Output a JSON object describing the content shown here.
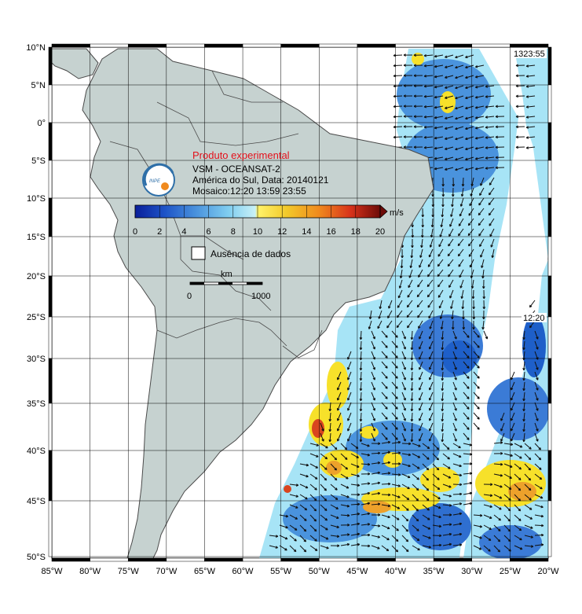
{
  "map": {
    "lat_labels": [
      "10°N",
      "5°N",
      "0°",
      "5°S",
      "10°S",
      "15°S",
      "20°S",
      "25°S",
      "30°S",
      "35°S",
      "40°S",
      "45°S",
      "50°S"
    ],
    "lon_labels": [
      "85°W",
      "80°W",
      "75°W",
      "70°W",
      "65°W",
      "60°W",
      "55°W",
      "50°W",
      "45°W",
      "40°W",
      "35°W",
      "30°W",
      "25°W",
      "20°W"
    ],
    "extent": {
      "lon_min": -85,
      "lon_max": -20,
      "lat_min": -50,
      "lat_max": 10
    }
  },
  "info": {
    "title": "Produto experimental",
    "product": "VSM - OCEANSAT-2",
    "region_date": "América do Sul, Data: 20140121",
    "mosaic": "Mosaico:12:20 13:59 23:55"
  },
  "colorbar": {
    "unit": "m/s",
    "ticks": [
      "0",
      "2",
      "4",
      "6",
      "8",
      "10",
      "12",
      "14",
      "16",
      "18",
      "20"
    ],
    "min": 0,
    "max": 20
  },
  "legend": {
    "no_data": "Ausência de dados",
    "scale_unit": "km",
    "scale_start": "0",
    "scale_end": "1000"
  },
  "swath_times": {
    "east_top": "1323:55",
    "east_mid": "12:20"
  },
  "colors": {
    "land": "#c6d2d0",
    "border": "#5a5a5a",
    "blue_dark": "#1e5fc9",
    "blue_mid": "#4a93dd",
    "cyan": "#9fe3f4",
    "yellow": "#f7e12a",
    "orange": "#eda12b",
    "red": "#d9451f"
  }
}
